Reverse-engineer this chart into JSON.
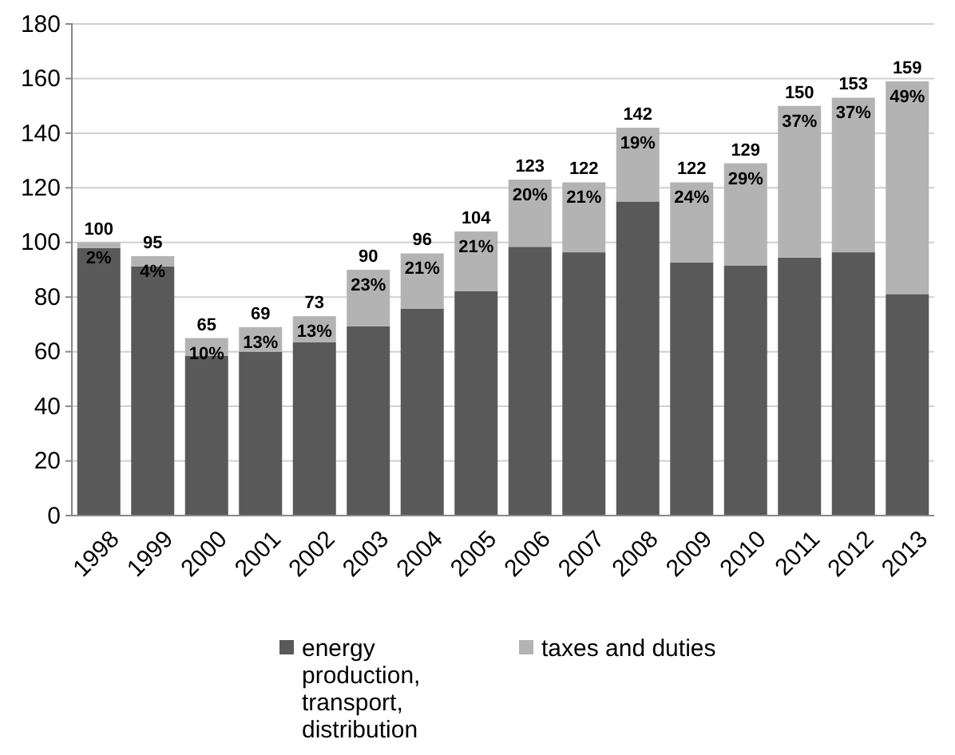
{
  "chart_data": {
    "type": "bar",
    "stacked": true,
    "categories": [
      "1998",
      "1999",
      "2000",
      "2001",
      "2002",
      "2003",
      "2004",
      "2005",
      "2006",
      "2007",
      "2008",
      "2009",
      "2010",
      "2011",
      "2012",
      "2013"
    ],
    "series": [
      {
        "name": "energy production, transport, distribution",
        "color": "#595959",
        "values": [
          98,
          91.2,
          58.5,
          60,
          63.5,
          69.3,
          75.8,
          82.2,
          98.4,
          96.4,
          115,
          92.7,
          91.6,
          94.5,
          96.4,
          81.1
        ]
      },
      {
        "name": "taxes and duties",
        "color": "#b3b3b3",
        "values": [
          2,
          3.8,
          6.5,
          9,
          9.5,
          20.7,
          20.2,
          21.8,
          24.6,
          25.6,
          27,
          29.3,
          37.4,
          55.5,
          56.6,
          77.9
        ]
      }
    ],
    "annotations": [
      {
        "text": "2%",
        "x": "1998",
        "y": 100
      },
      {
        "text": "4%",
        "x": "1999",
        "y": 95
      },
      {
        "text": "10%",
        "x": "2000",
        "y": 65
      },
      {
        "text": "13%",
        "x": "2001",
        "y": 69
      },
      {
        "text": "13%",
        "x": "2002",
        "y": 73
      },
      {
        "text": "23%",
        "x": "2003",
        "y": 90
      },
      {
        "text": "21%",
        "x": "2004",
        "y": 96
      },
      {
        "text": "21%",
        "x": "2005",
        "y": 104
      },
      {
        "text": "20%",
        "x": "2006",
        "y": 123
      },
      {
        "text": "21%",
        "x": "2007",
        "y": 122
      },
      {
        "text": "19%",
        "x": "2008",
        "y": 142
      },
      {
        "text": "24%",
        "x": "2009",
        "y": 122
      },
      {
        "text": "29%",
        "x": "2010",
        "y": 129
      },
      {
        "text": "37%",
        "x": "2011",
        "y": 150
      },
      {
        "text": "37%",
        "x": "2012",
        "y": 153
      },
      {
        "text": "49%",
        "x": "2013",
        "y": 159
      }
    ],
    "totals": [
      "100",
      "95",
      "65",
      "69",
      "73",
      "90",
      "96",
      "104",
      "123",
      "122",
      "142",
      "122",
      "129",
      "150",
      "153",
      "159"
    ],
    "ylim": [
      0,
      180
    ],
    "yticks": [
      0,
      20,
      40,
      60,
      80,
      100,
      120,
      140,
      160,
      180
    ],
    "grid": "y",
    "legend": "bottom"
  }
}
